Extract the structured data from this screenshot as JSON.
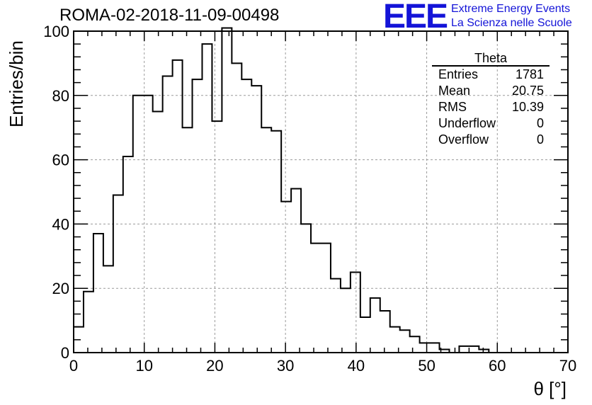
{
  "header": {
    "title": "ROMA-02-2018-11-09-00498",
    "logo_text": "EEE",
    "logo_line1": "Extreme Energy Events",
    "logo_line2": "La Scienza nelle Scuole"
  },
  "stats_box": {
    "title": "Theta",
    "rows": [
      {
        "label": "Entries",
        "value": "1781"
      },
      {
        "label": "Mean",
        "value": "20.75"
      },
      {
        "label": "RMS",
        "value": "10.39"
      },
      {
        "label": "Underflow",
        "value": "0"
      },
      {
        "label": "Overflow",
        "value": "0"
      }
    ]
  },
  "chart_data": {
    "type": "histogram",
    "xlabel": "θ [°]",
    "ylabel": "Entries/bin",
    "xlim": [
      0,
      70
    ],
    "ylim": [
      0,
      100
    ],
    "grid": true,
    "bin_width": 1.4,
    "bin_edges_start": 0,
    "x_ticks": [
      0,
      10,
      20,
      30,
      40,
      50,
      60,
      70
    ],
    "y_ticks": [
      0,
      20,
      40,
      60,
      80,
      100
    ],
    "values": [
      8,
      19,
      37,
      27,
      49,
      61,
      80,
      80,
      75,
      86,
      91,
      70,
      85,
      96,
      72,
      101,
      90,
      85,
      83,
      70,
      69,
      47,
      51,
      40,
      34,
      34,
      23,
      20,
      25,
      11,
      17,
      13,
      8,
      7,
      5,
      3,
      3,
      1,
      0,
      2,
      2,
      1,
      0,
      0,
      0,
      0,
      0,
      0,
      0,
      0
    ]
  }
}
